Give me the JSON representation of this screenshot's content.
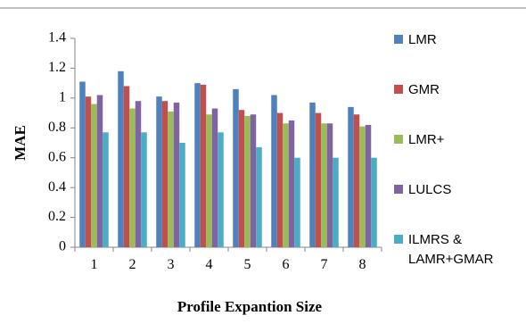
{
  "chart_data": {
    "type": "bar",
    "title": "",
    "xlabel": "Profile Expantion Size",
    "ylabel": "MAE",
    "categories": [
      "1",
      "2",
      "3",
      "4",
      "5",
      "6",
      "7",
      "8"
    ],
    "ylim": [
      0,
      1.4
    ],
    "yticks": [
      "0",
      "0.2",
      "0.4",
      "0.6",
      "0.8",
      "1",
      "1.2",
      "1.4"
    ],
    "grid": false,
    "legend_position": "right",
    "series": [
      {
        "name": "LMR",
        "color": "#4F81BD",
        "values": [
          1.11,
          1.18,
          1.01,
          1.1,
          1.06,
          1.02,
          0.97,
          0.94
        ]
      },
      {
        "name": "GMR",
        "color": "#C0504D",
        "values": [
          1.01,
          1.08,
          0.98,
          1.09,
          0.92,
          0.9,
          0.9,
          0.89
        ]
      },
      {
        "name": "LMR+",
        "color": "#9BBB59",
        "values": [
          0.96,
          0.93,
          0.91,
          0.89,
          0.88,
          0.83,
          0.83,
          0.81
        ]
      },
      {
        "name": "LULCS",
        "color": "#8064A2",
        "values": [
          1.02,
          0.98,
          0.97,
          0.93,
          0.89,
          0.85,
          0.83,
          0.82
        ]
      },
      {
        "name": "ILMRS & LAMR+GMAR",
        "legend_lines": [
          "ILMRS &",
          "LAMR+GMAR"
        ],
        "color": "#4BACC6",
        "values": [
          0.77,
          0.77,
          0.7,
          0.77,
          0.67,
          0.6,
          0.6,
          0.6
        ]
      }
    ]
  }
}
